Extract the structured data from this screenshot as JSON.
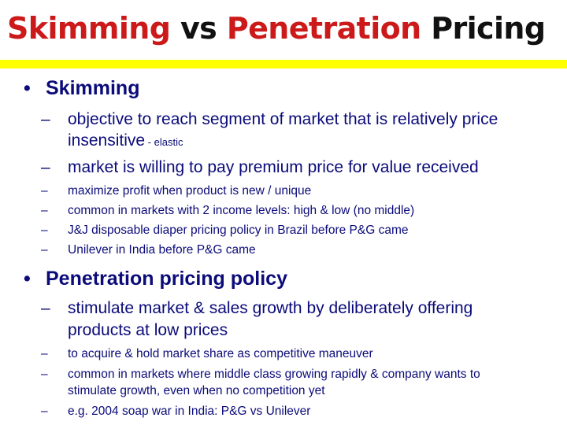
{
  "title": {
    "word1": "Skimming",
    "word2": "vs",
    "word3": "Penetration",
    "word4": "Pricing"
  },
  "bullet_glyph": "•",
  "dash_glyph": "–",
  "skimming": {
    "heading": "Skimming",
    "points": [
      {
        "line1": "objective to reach segment of market that is relatively price",
        "line2": "insensitive",
        "note": " - elastic"
      },
      {
        "line1": "market is willing to pay premium price for value received"
      }
    ],
    "details": [
      "maximize profit when product is new / unique",
      "common in markets with 2 income levels: high & low (no middle)",
      "J&J disposable diaper pricing policy in Brazil before P&G came",
      "Unilever in India before P&G came"
    ]
  },
  "penetration": {
    "heading": "Penetration pricing policy",
    "points": [
      {
        "line1": "stimulate market & sales growth by deliberately offering",
        "line2": "products at low prices"
      }
    ],
    "details": [
      {
        "line1": "to acquire & hold market share as competitive maneuver"
      },
      {
        "line1": "common in markets where middle class growing rapidly & company wants to",
        "line2": "stimulate growth, even when no competition yet"
      },
      {
        "line1": "e.g. 2004 soap war in India: P&G vs Unilever"
      }
    ]
  },
  "colors": {
    "title_red": "#cc1a1a",
    "title_black": "#111111",
    "rule_yellow": "#ffff00",
    "text_navy": "#0b0b7a"
  }
}
